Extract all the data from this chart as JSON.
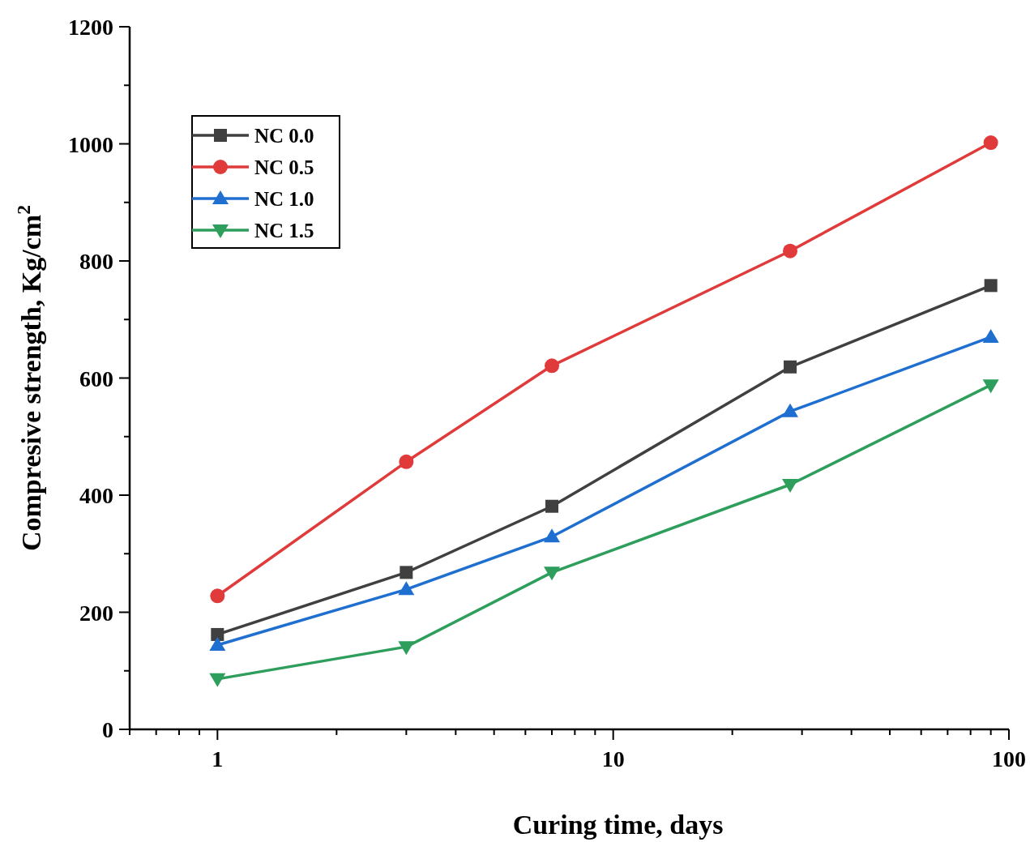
{
  "chart_data": {
    "type": "line",
    "xlabel": "Curing time, days",
    "ylabel": "Compresive strength, Kg/cm$^{2}$",
    "log": "x",
    "xlim": [
      0.6,
      100
    ],
    "xticks": [
      {
        "value": 0.6,
        "label": null
      },
      {
        "value": 0.7,
        "label": null
      },
      {
        "value": 0.8,
        "label": null
      },
      {
        "value": 0.9,
        "label": null
      },
      1,
      {
        "value": 2,
        "label": null
      },
      {
        "value": 3,
        "label": null
      },
      {
        "value": 4,
        "label": null
      },
      {
        "value": 5,
        "label": null
      },
      {
        "value": 6,
        "label": null
      },
      {
        "value": 7,
        "label": null
      },
      {
        "value": 8,
        "label": null
      },
      {
        "value": 9,
        "label": null
      },
      10,
      {
        "value": 20,
        "label": null
      },
      {
        "value": 30,
        "label": null
      },
      {
        "value": 40,
        "label": null
      },
      {
        "value": 50,
        "label": null
      },
      {
        "value": 60,
        "label": null
      },
      {
        "value": 70,
        "label": null
      },
      {
        "value": 80,
        "label": null
      },
      {
        "value": 90,
        "label": null
      },
      100
    ],
    "ylim": [
      0,
      1200
    ],
    "yticks": [
      0,
      {
        "value": 100,
        "label": null
      },
      200,
      {
        "value": 300,
        "label": null
      },
      400,
      {
        "value": 500,
        "label": null
      },
      600,
      {
        "value": 700,
        "label": null
      },
      800,
      {
        "value": 900,
        "label": null
      },
      1000,
      {
        "value": 1100,
        "label": null
      },
      1200
    ],
    "x": [
      1,
      3,
      7,
      28,
      90
    ],
    "grid": false,
    "legend": "top left",
    "line_style": "solid",
    "series": [
      {
        "name": "NC 0.0",
        "color": "#404040",
        "marker": "square",
        "values": [
          162,
          268,
          381,
          619,
          758
        ]
      },
      {
        "name": "NC 0.5",
        "color": "#e03a3a",
        "marker": "circle",
        "values": [
          228,
          457,
          621,
          817,
          1002
        ]
      },
      {
        "name": "NC 1.0",
        "color": "#1f6fd0",
        "marker": "triangle",
        "values": [
          144,
          239,
          329,
          543,
          670
        ]
      },
      {
        "name": "NC 1.5",
        "color": "#2e9e5c",
        "marker": "triangle-down",
        "values": [
          86,
          141,
          268,
          418,
          588
        ]
      }
    ]
  }
}
